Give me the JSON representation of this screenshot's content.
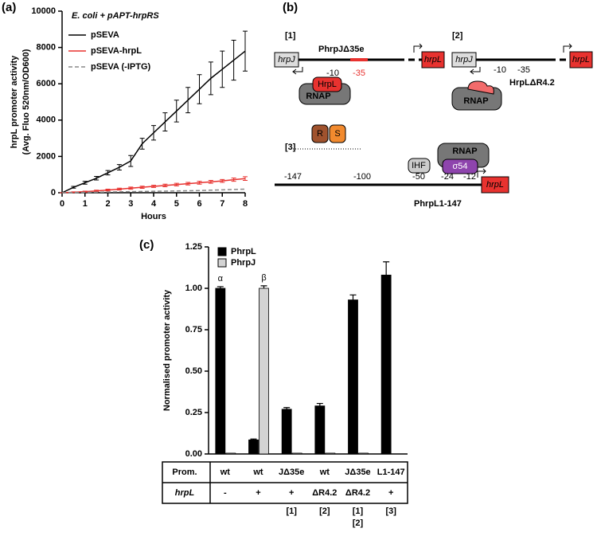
{
  "panels": [
    "(a)",
    "(b)",
    "(c)"
  ],
  "chart_data": [
    {
      "type": "line",
      "title": "E. coli + pAPT-hrpRS",
      "x_label": "Hours",
      "y_label": [
        "hrpL promoter activity",
        "(Avg. Fluo 520nm/OD600)"
      ],
      "x": [
        0,
        0.5,
        1,
        1.5,
        2,
        2.5,
        3,
        3.5,
        4,
        4.5,
        5,
        5.5,
        6,
        6.5,
        7,
        7.5,
        8
      ],
      "series": [
        {
          "name": "pSEVA",
          "color": "#000000",
          "line_style": "solid",
          "values": [
            0,
            300,
            550,
            800,
            1100,
            1400,
            1750,
            2700,
            3300,
            3900,
            4500,
            5100,
            5700,
            6300,
            6800,
            7300,
            7800
          ],
          "errors": [
            0,
            50,
            80,
            100,
            120,
            150,
            300,
            300,
            400,
            500,
            600,
            700,
            800,
            900,
            1000,
            1100,
            1100
          ]
        },
        {
          "name": "pSEVA-hrpL",
          "color": "#e8322f",
          "line_style": "solid",
          "values": [
            0,
            30,
            60,
            100,
            150,
            200,
            250,
            300,
            350,
            400,
            450,
            500,
            550,
            600,
            650,
            720,
            780
          ],
          "errors": [
            0,
            20,
            30,
            40,
            50,
            50,
            60,
            60,
            60,
            70,
            70,
            70,
            80,
            80,
            80,
            90,
            100
          ]
        },
        {
          "name": "pSEVA (-IPTG)",
          "color": "#888888",
          "line_style": "dashed",
          "values": [
            0,
            10,
            20,
            30,
            40,
            50,
            60,
            70,
            80,
            90,
            100,
            110,
            120,
            140,
            160,
            180,
            200
          ]
        }
      ],
      "xlim": [
        0,
        8
      ],
      "xticks": [
        0,
        1,
        2,
        3,
        4,
        5,
        6,
        7,
        8
      ],
      "ylim": [
        0,
        10000
      ],
      "yticks": [
        0,
        2000,
        4000,
        6000,
        8000,
        10000
      ]
    },
    {
      "type": "bar",
      "y_label": "Normalised promoter activity",
      "categories": [
        null,
        null,
        null,
        null,
        null,
        null
      ],
      "series": [
        {
          "name": "PhrpL",
          "color": "#000000",
          "values": [
            1.0,
            0.085,
            0.27,
            0.29,
            0.93,
            1.08
          ],
          "errors": [
            0.01,
            0.005,
            0.01,
            0.015,
            0.03,
            0.08
          ]
        },
        {
          "name": "PhrpJ",
          "color": "#d3d3d3",
          "values": [
            0.005,
            1.0,
            0.005,
            0.005,
            0.005,
            null
          ],
          "errors": [
            0,
            0.015,
            0,
            0,
            0,
            null
          ]
        }
      ],
      "annotations": [
        {
          "text": "α",
          "series": 0,
          "index": 0
        },
        {
          "text": "β",
          "series": 1,
          "index": 1
        }
      ],
      "ylim": [
        0,
        1.25
      ],
      "yticks": [
        {
          "value": 0,
          "label": "0.00"
        },
        {
          "value": 0.25,
          "label": "0.25"
        },
        {
          "value": 0.5,
          "label": "0.50"
        },
        {
          "value": 0.75,
          "label": "0.75"
        },
        {
          "value": 1,
          "label": "1.00"
        },
        {
          "value": 1.25,
          "label": "1.25"
        }
      ]
    }
  ],
  "table": {
    "rows": [
      [
        "Prom.",
        "wt",
        "wt",
        "JΔ35e",
        "wt",
        "JΔ35e",
        "L1-147"
      ],
      [
        "hrpL",
        "-",
        "+",
        "+",
        "ΔR4.2",
        "ΔR4.2",
        "+"
      ]
    ],
    "notes": [
      [],
      [],
      [
        "[1]"
      ],
      [
        "[2]"
      ],
      [
        "[1]",
        "[2]"
      ],
      [
        "[3]"
      ]
    ]
  },
  "diagram": {
    "p1": {
      "tag": "[1]",
      "promoter": "PhrpJΔ35e",
      "gene_left": "hrpJ",
      "m10": "-10",
      "m35": "-35",
      "gene_right": "hrpL",
      "activator": "HrpL",
      "polymerase": "RNAP"
    },
    "p2": {
      "tag": "[2]",
      "gene_left": "hrpJ",
      "m10": "-10",
      "m35": "-35",
      "gene_right": "hrpL",
      "activator": "HrpLΔR4.2",
      "polymerase": "RNAP"
    },
    "p3": {
      "tag": "[3]",
      "r": "R",
      "s": "S",
      "ihf": "IHF",
      "polymerase": "RNAP",
      "sigma": "σ54",
      "pos": [
        "-147",
        "-100",
        "-50",
        "-24",
        "-12"
      ],
      "gene": "hrpL",
      "promoter": "PhrpL1-147"
    }
  }
}
